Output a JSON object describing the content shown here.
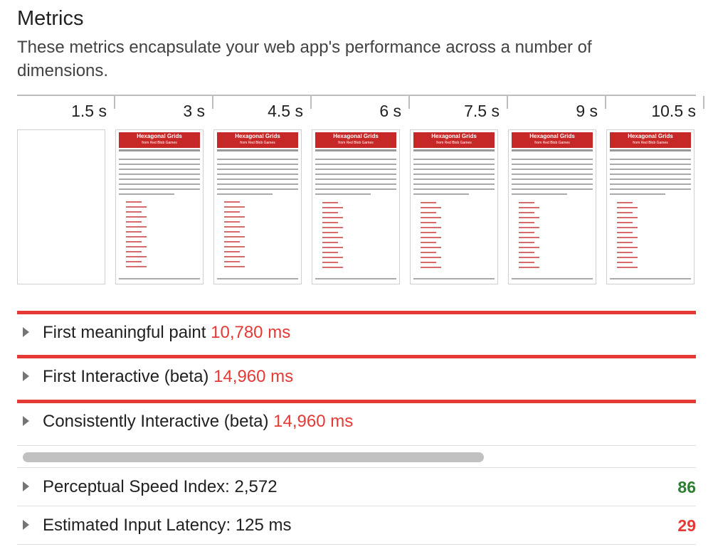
{
  "section": {
    "title": "Metrics",
    "description": "These metrics encapsulate your web app's performance across a number of dimensions."
  },
  "timeline": {
    "ticks": [
      "1.5 s",
      "3 s",
      "4.5 s",
      "6 s",
      "7.5 s",
      "9 s",
      "10.5 s"
    ]
  },
  "frames": {
    "page_title": "Hexagonal Grids",
    "page_subtitle": "from Red Blob Games"
  },
  "metrics": [
    {
      "label": "First meaningful paint",
      "value": "10,780 ms"
    },
    {
      "label": "First Interactive (beta)",
      "value": "14,960 ms"
    },
    {
      "label": "Consistently Interactive (beta)",
      "value": "14,960 ms"
    }
  ],
  "audits": [
    {
      "label": "Perceptual Speed Index: 2,572",
      "score": "86",
      "score_color": "#2e7d32"
    },
    {
      "label": "Estimated Input Latency: 125 ms",
      "score": "29",
      "score_color": "#e53935"
    }
  ],
  "colors": {
    "fail": "#e53935",
    "pass": "#2e7d32"
  }
}
